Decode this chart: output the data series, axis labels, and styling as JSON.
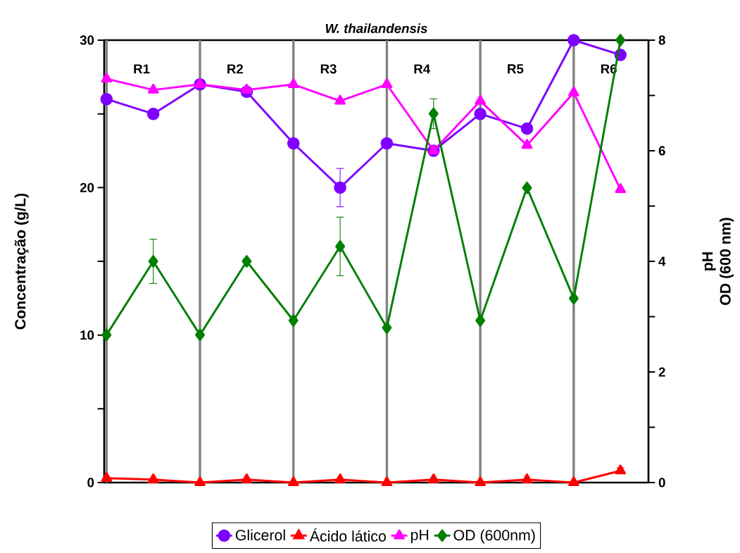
{
  "chart_data": {
    "type": "line",
    "title": "W. thailandensis",
    "ylabel": "Concentração (g/L)",
    "y2label": "pH\nOD (600 nm)",
    "ylim": [
      0,
      30
    ],
    "y2lim": [
      0,
      8
    ],
    "yticks": [
      0,
      {
        "value": 5,
        "label": null
      },
      10,
      {
        "value": 15,
        "label": null
      },
      20,
      {
        "value": 25,
        "label": null
      },
      30
    ],
    "y2ticks": [
      0,
      {
        "value": 1,
        "label": null
      },
      2,
      {
        "value": 3,
        "label": null
      },
      4,
      {
        "value": 5,
        "label": null
      },
      6,
      {
        "value": 7,
        "label": null
      },
      8
    ],
    "tick_labels": "y",
    "legend": "bottom",
    "annotations": [
      "R1",
      "R2",
      "R3",
      "R4",
      "R5",
      "R6"
    ],
    "categories": [
      null,
      null,
      null,
      null,
      null,
      null,
      null,
      null,
      null,
      null,
      null,
      null
    ],
    "series": [
      {
        "name": "Glicerol",
        "color": "#7f00ff",
        "marker": "circle",
        "values": [
          26,
          25,
          27,
          26.5,
          23,
          20,
          23,
          22.5,
          25,
          24,
          30,
          29
        ],
        "errors": [
          null,
          null,
          null,
          null,
          null,
          1.3,
          null,
          0.3,
          null,
          null,
          null,
          0.3
        ]
      },
      {
        "name": "Ácido lático",
        "color": "#ff0000",
        "marker": "triangle",
        "values": [
          0.3,
          0.2,
          0,
          0.2,
          0,
          0.2,
          0,
          0.2,
          0,
          0.2,
          0,
          0.8
        ],
        "errors": [
          null,
          null,
          null,
          null,
          null,
          null,
          null,
          null,
          null,
          null,
          null,
          0.2
        ]
      },
      {
        "name": "pH",
        "color": "#ff00ff",
        "marker": "triangle-down",
        "axis": "y2",
        "values": [
          7.3,
          7.1,
          7.2,
          7.1,
          7.2,
          6.9,
          7.2,
          6.0,
          6.9,
          6.1,
          7.05,
          5.3
        ]
      },
      {
        "name": "OD (600nm)",
        "color": "#007f00",
        "marker": "diamond",
        "axis": "y2",
        "values": [
          2.67,
          4.0,
          2.67,
          4.0,
          2.93,
          4.27,
          2.8,
          6.67,
          2.93,
          5.33,
          3.33,
          8.0
        ],
        "errors": [
          null,
          0.4,
          null,
          null,
          null,
          0.53,
          null,
          0.27,
          null,
          null,
          null,
          null
        ]
      }
    ],
    "grid": "x"
  }
}
